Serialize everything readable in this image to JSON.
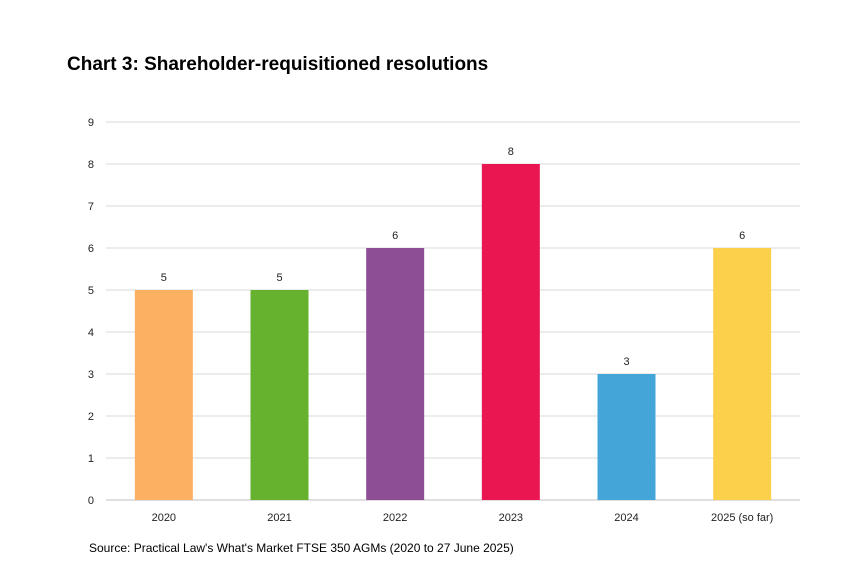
{
  "chart_data": {
    "type": "bar",
    "title": "Chart 3: Shareholder-requisitioned resolutions",
    "categories": [
      "2020",
      "2021",
      "2022",
      "2023",
      "2024",
      "2025 (so far)"
    ],
    "values": [
      5,
      5,
      6,
      8,
      3,
      6
    ],
    "colors": [
      "#FBB062",
      "#66B22E",
      "#8E4E96",
      "#EA1651",
      "#44A5D8",
      "#FDD04C"
    ],
    "ylim": [
      0,
      9
    ],
    "yticks": [
      "0",
      "1",
      "2",
      "3",
      "4",
      "5",
      "6",
      "7",
      "8",
      "9"
    ],
    "grid": true,
    "data_labels": true,
    "source": "Source: Practical Law's What's Market FTSE 350 AGMs (2020 to 27 June 2025)"
  }
}
